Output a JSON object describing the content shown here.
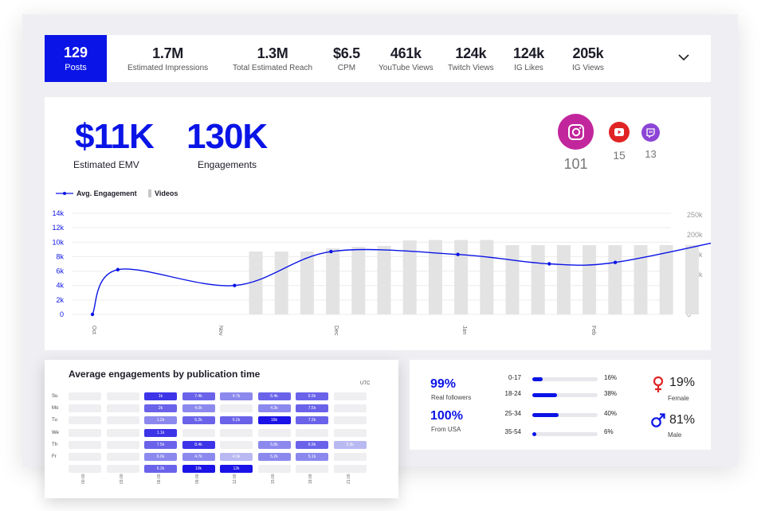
{
  "stats": {
    "posts": {
      "value": "129",
      "label": "Posts"
    },
    "items": [
      {
        "value": "1.7M",
        "label": "Estimated Impressions"
      },
      {
        "value": "1.3M",
        "label": "Total Estimated Reach"
      },
      {
        "value": "$6.5",
        "label": "CPM"
      },
      {
        "value": "461k",
        "label": "YouTube Views"
      },
      {
        "value": "124k",
        "label": "Twitch Views"
      },
      {
        "value": "124k",
        "label": "IG Likes"
      },
      {
        "value": "205k",
        "label": "IG Views"
      }
    ]
  },
  "summary": {
    "emv": {
      "value": "$11K",
      "label": "Estimated EMV"
    },
    "engagements": {
      "value": "130K",
      "label": "Engagements"
    }
  },
  "platforms": [
    {
      "icon": "instagram-icon",
      "count": "101",
      "color": "#c2269c"
    },
    {
      "icon": "youtube-icon",
      "count": "15",
      "color": "#e02424"
    },
    {
      "icon": "twitch-icon",
      "count": "13",
      "color": "#8c45d6"
    }
  ],
  "colors": {
    "accent": "#0a14e6",
    "bar": "#e3e3e3"
  },
  "chart_data": {
    "type": "line",
    "legend": [
      "Avg. Engagement",
      "Videos"
    ],
    "x_ticks": [
      "Oct",
      "Nov",
      "Dec",
      "Jan",
      "Feb"
    ],
    "y_left": {
      "ticks": [
        "0",
        "2k",
        "4k",
        "6k",
        "8k",
        "10k",
        "12k",
        "14k"
      ],
      "range": [
        0,
        14000
      ]
    },
    "y_right": {
      "ticks": [
        "0",
        "50k",
        "100k",
        "150k",
        "200k",
        "250k"
      ],
      "range": [
        0,
        250000
      ]
    },
    "line": {
      "name": "Avg. Engagement",
      "points": [
        [
          0,
          0
        ],
        [
          0.5,
          6200
        ],
        [
          2.8,
          4000
        ],
        [
          4.7,
          8700
        ],
        [
          7.2,
          8300
        ],
        [
          9.0,
          7000
        ],
        [
          10.3,
          7200
        ],
        [
          12.6,
          10500
        ]
      ]
    },
    "bars": {
      "name": "Videos",
      "values": [
        158000,
        158000,
        158000,
        166000,
        170000,
        172000,
        186000,
        187000,
        187000,
        187000,
        174000,
        174000,
        174000,
        174000,
        174000,
        174000,
        174000,
        174000,
        174000,
        174000,
        174000
      ]
    },
    "legend_position": "top-left",
    "grid": true
  },
  "heatmap": {
    "title": "Average engagements by publication time",
    "tz": "UTC",
    "days": [
      "Su",
      "Mo",
      "Tu",
      "We",
      "Th",
      "Fr",
      ""
    ],
    "hours": [
      "00:00",
      "03:00",
      "06:00",
      "09:00",
      "12:00",
      "15:00",
      "18:00",
      "21:00"
    ],
    "cells": [
      [
        "",
        "",
        "1k",
        "7.4k",
        "4.7k",
        "6.4k",
        "6.9k",
        ""
      ],
      [
        "",
        "",
        "2k",
        "4.0k",
        "",
        "4.3k",
        "7.5k",
        ""
      ],
      [
        "",
        "",
        "1.2k",
        "5.2k",
        "5.2k",
        "16k",
        "7.2k",
        ""
      ],
      [
        "",
        "",
        "1.1k",
        "",
        "",
        "",
        "",
        ""
      ],
      [
        "",
        "",
        "7.5k",
        "8.4k",
        "",
        "5.8k",
        "6.9k",
        "3.3k"
      ],
      [
        "",
        "",
        "6.0k",
        "4.7k",
        "4.0k",
        "5.2k",
        "5.1k",
        ""
      ],
      [
        "",
        "",
        "6.3k",
        "10k",
        "12k",
        "",
        "",
        ""
      ]
    ],
    "levels": [
      [
        0,
        0,
        4,
        3,
        2,
        3,
        3,
        0
      ],
      [
        0,
        0,
        3,
        2,
        0,
        2,
        3,
        0
      ],
      [
        0,
        0,
        2,
        3,
        3,
        5,
        3,
        0
      ],
      [
        0,
        0,
        4,
        0,
        0,
        0,
        0,
        0
      ],
      [
        0,
        0,
        3,
        4,
        0,
        2,
        3,
        1
      ],
      [
        0,
        0,
        2,
        2,
        1,
        2,
        2,
        0
      ],
      [
        0,
        0,
        3,
        5,
        5,
        0,
        0,
        0
      ]
    ]
  },
  "audience": {
    "real": {
      "value": "99%",
      "label": "Real followers"
    },
    "usa": {
      "value": "100%",
      "label": "From USA"
    },
    "ages": [
      {
        "range": "0-17",
        "pct": "16%",
        "fill": 0.16
      },
      {
        "range": "18-24",
        "pct": "38%",
        "fill": 0.38
      },
      {
        "range": "25-34",
        "pct": "40%",
        "fill": 0.4
      },
      {
        "range": "35-54",
        "pct": "6%",
        "fill": 0.06
      }
    ],
    "gender": [
      {
        "pct": "19%",
        "label": "Female"
      },
      {
        "pct": "81%",
        "label": "Male"
      }
    ]
  }
}
